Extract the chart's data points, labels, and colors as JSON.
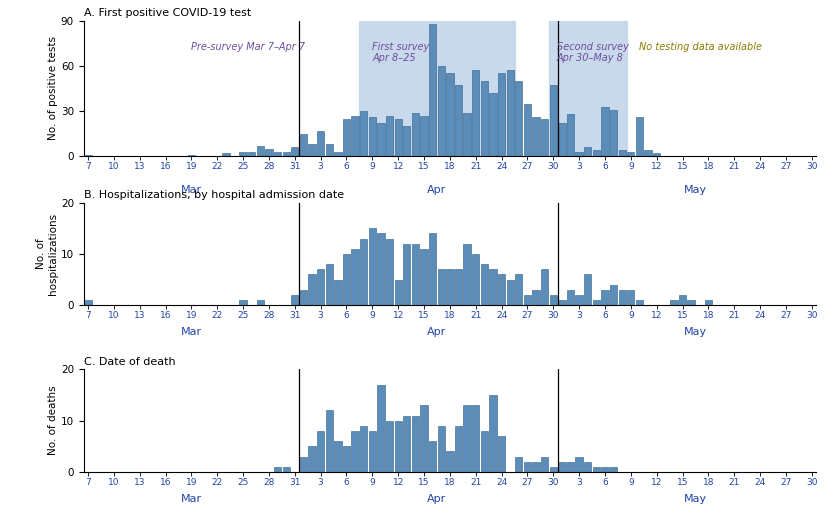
{
  "title_a": "A. First positive COVID-19 test",
  "title_b": "B. Hospitalizations, by hospital admission date",
  "title_c": "C. Date of death",
  "ylabel_a": "No. of positive tests",
  "ylabel_b": "No. of\nhospitalizations",
  "ylabel_c": "No. of deaths",
  "bar_color": "#5B8DB8",
  "bar_edge_color": "#2E5F8A",
  "shade_color": "#C9D9EC",
  "background_color": "#FFFFFF",
  "values_a": [
    1,
    0,
    0,
    0,
    0,
    0,
    0,
    0,
    0,
    0,
    0,
    0,
    1,
    0,
    0,
    0,
    2,
    0,
    3,
    3,
    7,
    5,
    3,
    3,
    6,
    15,
    8,
    17,
    8,
    3,
    25,
    27,
    30,
    26,
    22,
    27,
    25,
    20,
    29,
    27,
    88,
    60,
    55,
    47,
    29,
    57,
    50,
    42,
    55,
    57,
    50,
    35,
    26,
    25,
    47,
    22,
    28,
    3,
    6,
    4,
    33,
    31,
    4,
    3,
    26,
    4,
    2,
    0,
    0,
    0,
    0,
    0,
    0,
    0,
    0,
    0,
    0,
    0,
    0,
    0,
    0,
    0,
    0
  ],
  "values_b": [
    1,
    0,
    0,
    0,
    0,
    0,
    0,
    0,
    0,
    0,
    0,
    0,
    0,
    0,
    0,
    0,
    0,
    0,
    1,
    0,
    1,
    0,
    0,
    0,
    2,
    3,
    6,
    7,
    8,
    5,
    10,
    11,
    13,
    15,
    14,
    13,
    5,
    12,
    12,
    11,
    14,
    7,
    7,
    7,
    12,
    10,
    8,
    7,
    6,
    5,
    6,
    2,
    3,
    7,
    2,
    1,
    3,
    2,
    6,
    1,
    3,
    4,
    3,
    3,
    1,
    0,
    0,
    0,
    1,
    2,
    1,
    0,
    1,
    0,
    0,
    0,
    0,
    0,
    0,
    0,
    0,
    0,
    0
  ],
  "values_c": [
    0,
    0,
    0,
    0,
    0,
    0,
    0,
    0,
    0,
    0,
    0,
    0,
    0,
    0,
    0,
    0,
    0,
    0,
    0,
    0,
    0,
    0,
    1,
    1,
    0,
    3,
    5,
    8,
    12,
    6,
    5,
    8,
    9,
    8,
    17,
    10,
    10,
    11,
    11,
    13,
    6,
    9,
    4,
    9,
    13,
    13,
    8,
    15,
    7,
    0,
    3,
    2,
    2,
    3,
    1,
    2,
    2,
    3,
    2,
    1,
    1,
    1,
    0,
    0,
    0,
    0,
    0,
    0,
    0,
    0,
    0,
    0,
    0,
    0,
    0,
    0,
    0,
    0,
    0,
    0,
    0,
    0,
    0
  ],
  "ylim_a": [
    0,
    90
  ],
  "ylim_bc": [
    0,
    20
  ],
  "yticks_a": [
    0,
    30,
    60,
    90
  ],
  "yticks_bc": [
    0,
    10,
    20
  ],
  "annotation_pre_survey": "Pre-survey Mar 7–Apr 7",
  "annotation_first": "First survey\nApr 8–25",
  "annotation_second": "Second survey\nApr 30–May 8",
  "annotation_nodata": "No testing data available",
  "color_purple": "#6B4E9B",
  "color_olive": "#8B7A00"
}
